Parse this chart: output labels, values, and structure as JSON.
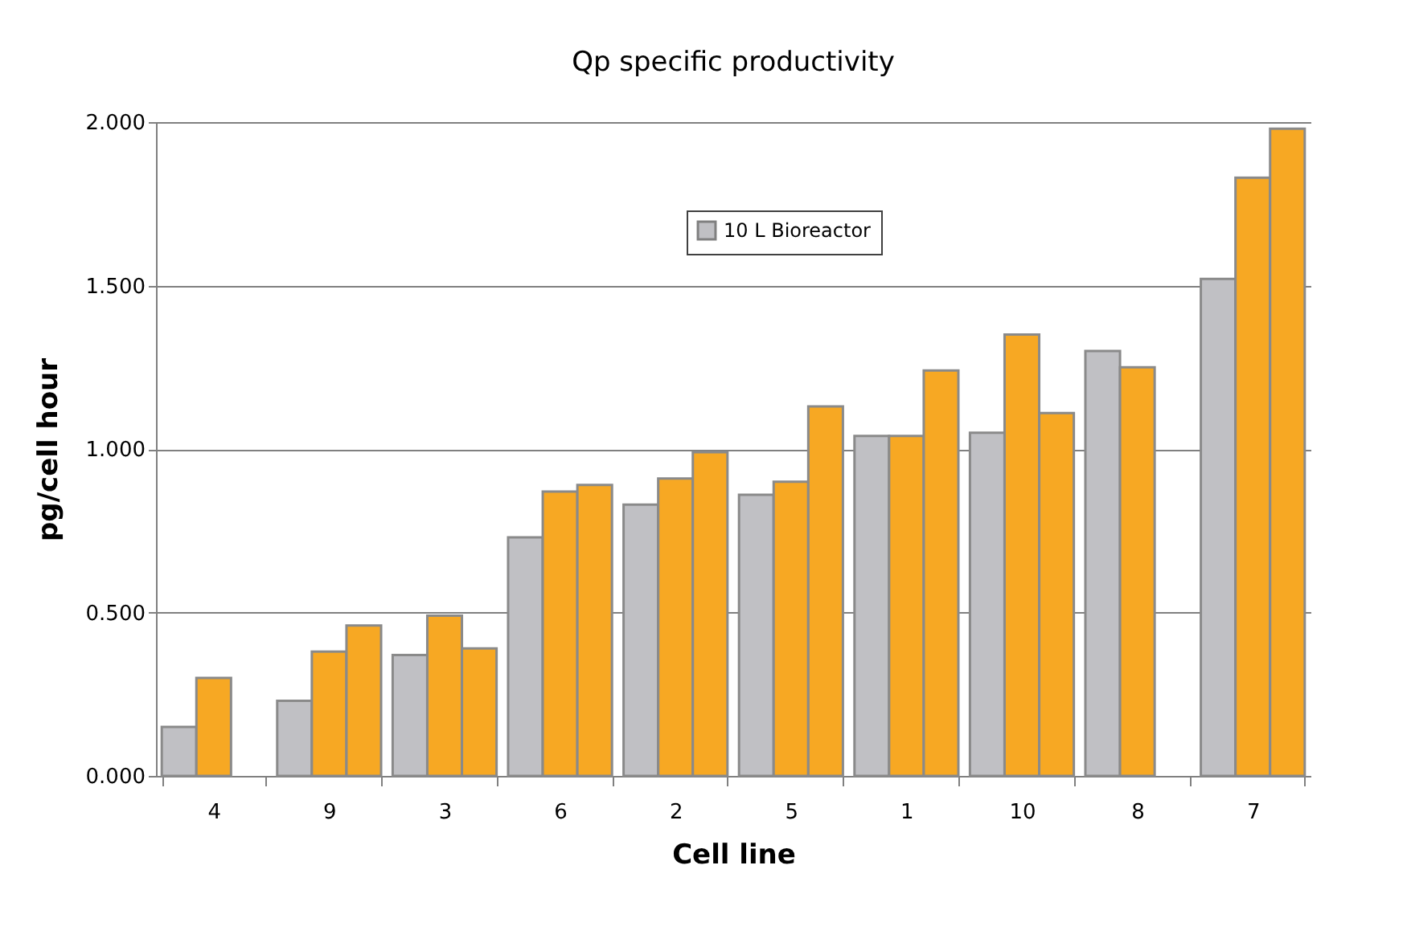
{
  "chart_data": {
    "type": "bar",
    "title": "Qp    specific productivity",
    "xlabel": "Cell line",
    "ylabel": "pg/cell hour",
    "categories": [
      "4",
      "9",
      "3",
      "6",
      "2",
      "5",
      "1",
      "10",
      "8",
      "7"
    ],
    "series": [
      {
        "name": "10 L Bioreactor",
        "color": "#c0c0c4",
        "values": [
          0.15,
          0.23,
          0.37,
          0.73,
          0.83,
          0.86,
          1.04,
          1.05,
          1.3,
          1.52
        ]
      },
      {
        "color": "#f7a823",
        "values": [
          0.3,
          0.38,
          0.49,
          0.87,
          0.91,
          0.9,
          1.04,
          1.35,
          1.25,
          1.83
        ]
      },
      {
        "color": "#f7a823",
        "values": [
          null,
          0.46,
          0.39,
          0.89,
          0.99,
          1.13,
          1.24,
          1.11,
          null,
          1.98
        ]
      }
    ],
    "ylim": [
      0,
      2
    ],
    "yticks": [
      {
        "value": 0,
        "label": "0.000"
      },
      {
        "value": 0.5,
        "label": "0.500"
      },
      {
        "value": 1,
        "label": "1.000"
      },
      {
        "value": 1.5,
        "label": "1.500"
      },
      {
        "value": 2,
        "label": "2.000"
      }
    ],
    "grid": "y",
    "legend": "top"
  }
}
